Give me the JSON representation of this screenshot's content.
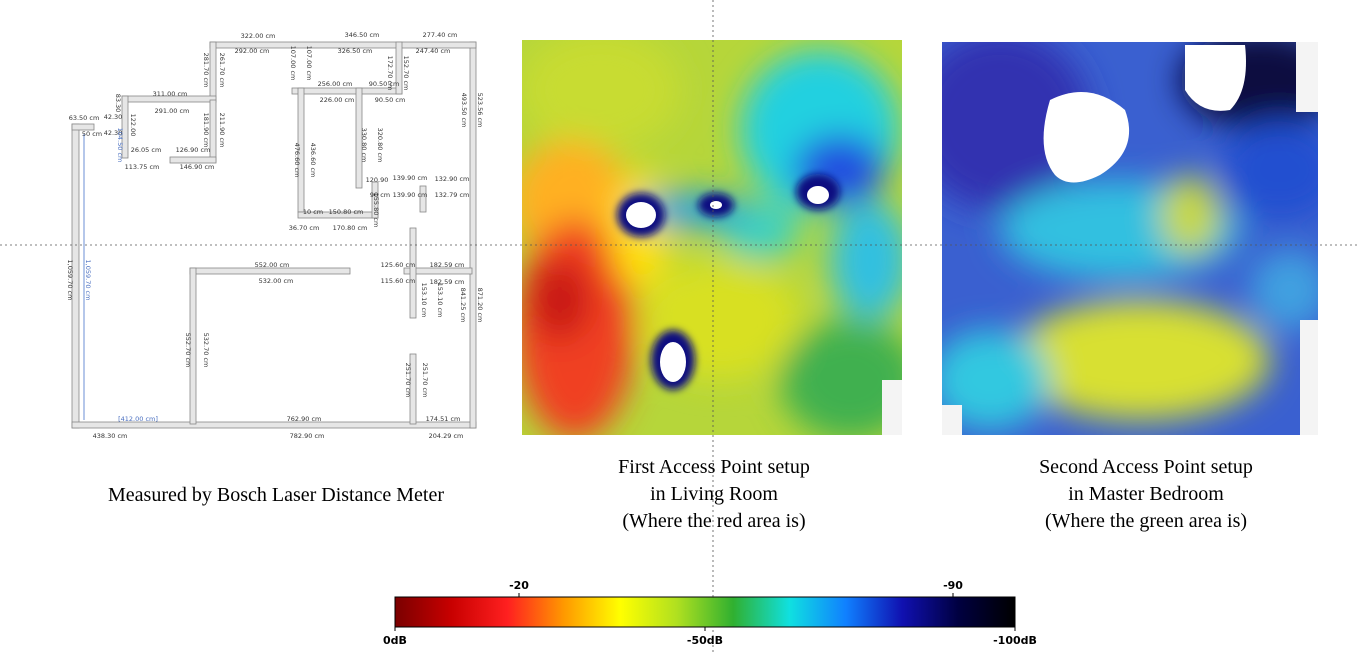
{
  "plan": {
    "caption": "Measured by Bosch Laser Distance Meter",
    "labels": [
      "322.00 cm",
      "346.50 cm",
      "277.40 cm",
      "292.00 cm",
      "326.50 cm",
      "247.40 cm",
      "311.00 cm",
      "256.00 cm",
      "90.50 cm",
      "291.00 cm",
      "226.00 cm",
      "90.50 cm",
      "63.50 cm",
      "42.30",
      "42.30",
      "50 cm",
      "26.05 cm",
      "126.90 cm",
      "113.75 cm",
      "146.90 cm",
      "139.90 cm",
      "139.90 cm",
      "132.90 cm",
      "132.79 cm",
      "120.90",
      "90 cm",
      "150.80 cm",
      "170.80 cm",
      "36.70 cm",
      "10 cm",
      "552.00 cm",
      "532.00 cm",
      "125.60 cm",
      "115.60 cm",
      "182.59 cm",
      "182.59 cm",
      "[412.00 cm]",
      "762.90 cm",
      "174.51 cm",
      "438.30 cm",
      "782.90 cm",
      "204.29 cm",
      "1,059.70 cm",
      "1,059.70 cm",
      "552.70 cm",
      "532.70 cm",
      "251.70 cm",
      "251.70 cm",
      "841.25 cm",
      "871.20 cm",
      "493.50 cm",
      "523.56 cm",
      "476.60 cm",
      "436.60 cm",
      "330.80 cm",
      "320.80 cm",
      "281.70 cm",
      "261.70 cm",
      "107.00 cm",
      "107.00 cm",
      "172.70 cm",
      "152.70 cm",
      "181.90 cm",
      "211.90 cm",
      "155.80 cm",
      "153.10 cm",
      "153.10 cm",
      "83.30",
      "122.00",
      "104.50 cm"
    ]
  },
  "ap1": {
    "caption": [
      "First Access Point setup",
      "in Living Room",
      "(Where the red area is)"
    ]
  },
  "ap2": {
    "caption": [
      "Second Access Point setup",
      "in Master Bedroom",
      "(Where the green area is)"
    ]
  },
  "colorbar": {
    "range": [
      0,
      -100
    ],
    "colors": [
      "#7a0000",
      "#c80000",
      "#ff2020",
      "#ff9900",
      "#ffff00",
      "#b0e020",
      "#30b030",
      "#10e0e0",
      "#1080ff",
      "#1010b0",
      "#000040",
      "#000000"
    ],
    "top_ticks": [
      -20,
      -90
    ],
    "bottom_ticks": [
      {
        "value": 0,
        "label": "0dB"
      },
      {
        "value": -50,
        "label": "-50dB"
      },
      {
        "value": -100,
        "label": "-100dB"
      }
    ]
  }
}
